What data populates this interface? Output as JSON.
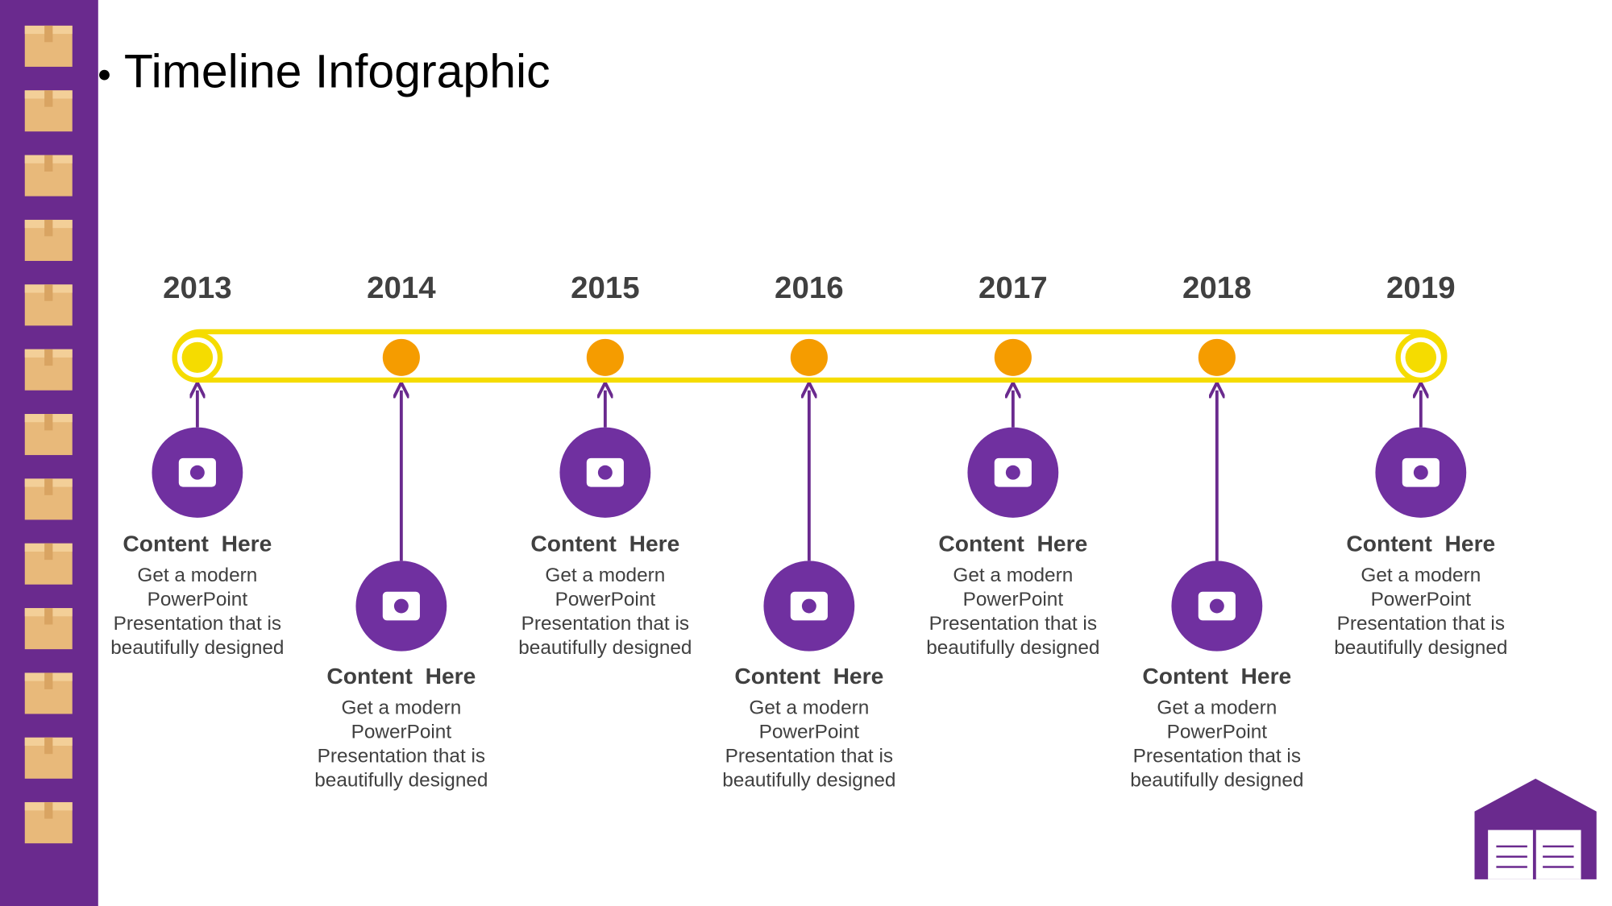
{
  "header": {
    "title": "Timeline Infographic"
  },
  "timeline": {
    "items": [
      {
        "year": "2013",
        "heading": "Content  Here",
        "lines": [
          "Get a modern",
          "PowerPoint",
          "Presentation that is",
          "beautifully designed"
        ]
      },
      {
        "year": "2014",
        "heading": "Content  Here",
        "lines": [
          "Get a modern",
          "PowerPoint",
          "Presentation that is",
          "beautifully designed"
        ]
      },
      {
        "year": "2015",
        "heading": "Content  Here",
        "lines": [
          "Get a modern",
          "PowerPoint",
          "Presentation that is",
          "beautifully designed"
        ]
      },
      {
        "year": "2016",
        "heading": "Content  Here",
        "lines": [
          "Get a modern",
          "PowerPoint",
          "Presentation that is",
          "beautifully designed"
        ]
      },
      {
        "year": "2017",
        "heading": "Content  Here",
        "lines": [
          "Get a modern",
          "PowerPoint",
          "Presentation that is",
          "beautifully designed"
        ]
      },
      {
        "year": "2018",
        "heading": "Content  Here",
        "lines": [
          "Get a modern",
          "PowerPoint",
          "Presentation that is",
          "beautifully designed"
        ]
      },
      {
        "year": "2019",
        "heading": "Content  Here",
        "lines": [
          "Get a modern",
          "PowerPoint",
          "Presentation that is",
          "beautifully designed"
        ]
      }
    ]
  }
}
